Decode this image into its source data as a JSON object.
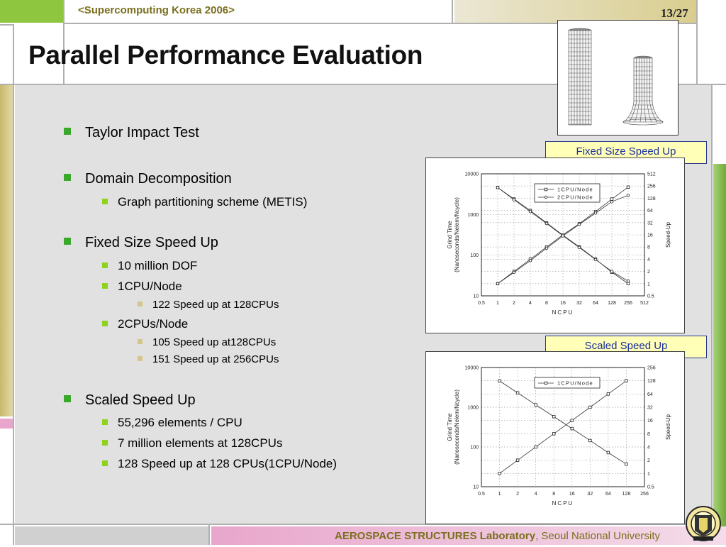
{
  "header": {
    "event": "<Supercomputing Korea 2006>",
    "page": "13/27"
  },
  "title": "Parallel Performance Evaluation",
  "footer": {
    "lab": "AEROSPACE STRUCTURES Laboratory",
    "univ": ", Seoul National University"
  },
  "bullets": {
    "taylor": "Taylor Impact Test",
    "domain": "Domain Decomposition",
    "graph": "Graph partitioning scheme (METIS)",
    "fixed": "Fixed Size Speed Up",
    "dof": "10 million DOF",
    "one_cpu": "1CPU/Node",
    "one_cpu_speed": "122 Speed up at 128CPUs",
    "two_cpu": "2CPUs/Node",
    "two_cpu_speed1": "105 Speed up at128CPUs",
    "two_cpu_speed2": "151 Speed up at 256CPUs",
    "scaled": "Scaled Speed Up",
    "elements": "55,296 elements / CPU",
    "million": "7 million elements at 128CPUs",
    "speedup128": "128 Speed up at 128 CPUs(1CPU/Node)"
  },
  "labels": {
    "fixed": "Fixed Size Speed Up",
    "scaled": "Scaled Speed Up"
  },
  "chart_data": [
    {
      "type": "line",
      "title": "Fixed Size Speed Up",
      "xlabel": "NCPU",
      "ylabel_left": "Grind Time (Nanoseconds/Nelem/Ncycle)",
      "ylabel_right": "Speed-Up",
      "x_scale": "log2",
      "xlim": [
        0.5,
        512
      ],
      "ylim_left": [
        10,
        10000
      ],
      "ylim_right": [
        0.5,
        512
      ],
      "x_ticks": [
        "0.5",
        "1",
        "2",
        "4",
        "8",
        "16",
        "32",
        "64",
        "128",
        "256",
        "512"
      ],
      "y_left_ticks": [
        "10",
        "100",
        "1000",
        "10000"
      ],
      "y_right_ticks": [
        "0.5",
        "1",
        "2",
        "4",
        "8",
        "16",
        "32",
        "64",
        "128",
        "256",
        "512"
      ],
      "legend": [
        "1CPU/Node",
        "2CPU/Node"
      ],
      "legend_position": "top-center",
      "grid": true,
      "x": [
        1,
        2,
        4,
        8,
        16,
        32,
        64,
        128,
        256
      ],
      "series": [
        {
          "name": "1CPU/Node",
          "marker": "square",
          "axis": "left",
          "values": [
            4600,
            2400,
            1250,
            620,
            310,
            160,
            80,
            38,
            20
          ]
        },
        {
          "name": "2CPU/Node",
          "marker": "circle",
          "axis": "left",
          "values": [
            4600,
            2300,
            1180,
            600,
            300,
            155,
            78,
            40,
            23
          ]
        },
        {
          "name": "1CPU/Node",
          "marker": "square",
          "axis": "right",
          "values": [
            1,
            2,
            4,
            8,
            16,
            30,
            60,
            122,
            240
          ]
        },
        {
          "name": "2CPU/Node",
          "marker": "circle",
          "axis": "right",
          "values": [
            1,
            1.9,
            3.7,
            7.5,
            15,
            29,
            55,
            105,
            151
          ]
        }
      ]
    },
    {
      "type": "line",
      "title": "Scaled Speed Up",
      "xlabel": "NCPU",
      "ylabel_left": "Grind Time (Nanoseconds/Nelem/Ncycle)",
      "ylabel_right": "Speed-Up",
      "x_scale": "log2",
      "xlim": [
        0.5,
        256
      ],
      "ylim_left": [
        10,
        10000
      ],
      "ylim_right": [
        0.5,
        256
      ],
      "x_ticks": [
        "0.5",
        "1",
        "2",
        "4",
        "8",
        "16",
        "32",
        "64",
        "128",
        "256"
      ],
      "y_left_ticks": [
        "10",
        "100",
        "1000",
        "10000"
      ],
      "y_right_ticks": [
        "0.5",
        "1",
        "2",
        "4",
        "8",
        "16",
        "32",
        "64",
        "128",
        "256"
      ],
      "legend": [
        "1CPU/Node"
      ],
      "legend_position": "top-center",
      "grid": true,
      "x": [
        1,
        2,
        4,
        8,
        16,
        32,
        64,
        128
      ],
      "series": [
        {
          "name": "1CPU/Node",
          "marker": "square",
          "axis": "left",
          "values": [
            4600,
            2300,
            1150,
            580,
            290,
            145,
            72,
            37
          ]
        },
        {
          "name": "1CPU/Node",
          "marker": "square",
          "axis": "right",
          "values": [
            1,
            2,
            4,
            8,
            16,
            32,
            64,
            128
          ]
        }
      ]
    }
  ]
}
